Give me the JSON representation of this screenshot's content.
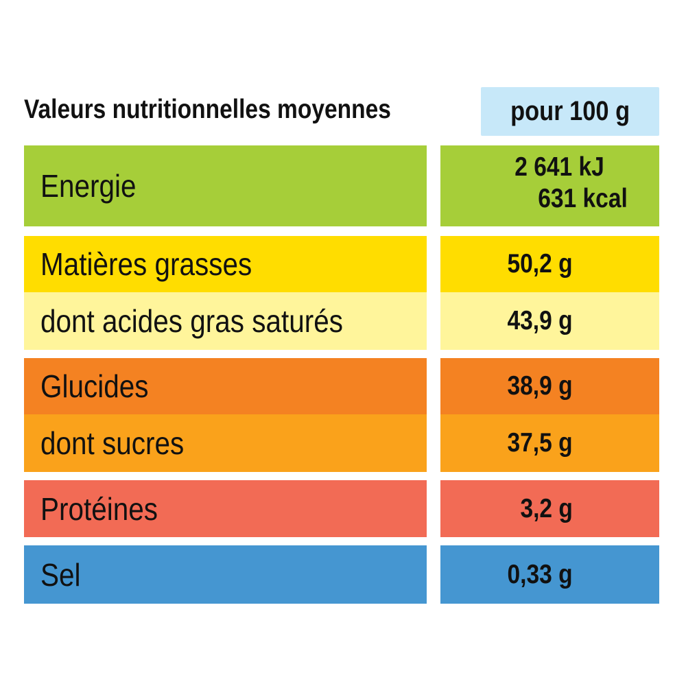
{
  "header": {
    "title": "Valeurs nutritionnelles moyennes",
    "per": "pour 100 g"
  },
  "rows": [
    {
      "label": "Energie",
      "value_kj": "2 641  kJ",
      "value_kcal": "631 kcal",
      "color": "#a6ce39"
    },
    {
      "label": "Matières grasses",
      "value": "50,2 g",
      "color": "#ffdd00"
    },
    {
      "label": "dont acides gras saturés",
      "value": "43,9 g",
      "color": "#fff59b"
    },
    {
      "label": "Glucides",
      "value": "38,9 g",
      "color": "#f48222"
    },
    {
      "label": "dont sucres",
      "value": "37,5 g",
      "color": "#faa21b"
    },
    {
      "label": "Protéines",
      "value": "3,2 g",
      "color": "#f26b55"
    },
    {
      "label": "Sel",
      "value": "0,33 g",
      "color": "#4596d1"
    }
  ]
}
